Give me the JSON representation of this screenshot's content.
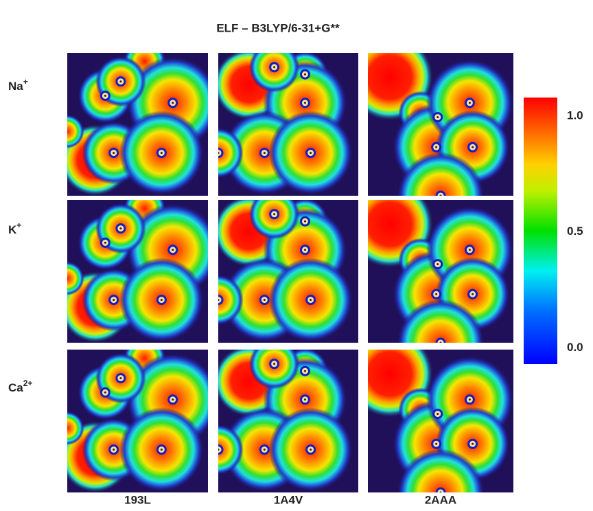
{
  "title": "ELF – B3LYP/6-31+G**",
  "row_labels": [
    {
      "base": "Na",
      "sup": "+"
    },
    {
      "base": "K",
      "sup": "+"
    },
    {
      "base": "Ca",
      "sup": "2+"
    }
  ],
  "column_labels": [
    "193L",
    "1A4V",
    "2AAA"
  ],
  "colorbar": {
    "clim": [
      -0.07,
      1.08
    ],
    "ticks": [
      {
        "value": 1,
        "label": "1.0"
      },
      {
        "value": 0.5,
        "label": "0.5"
      },
      {
        "value": 0,
        "label": "0.0"
      }
    ]
  }
}
